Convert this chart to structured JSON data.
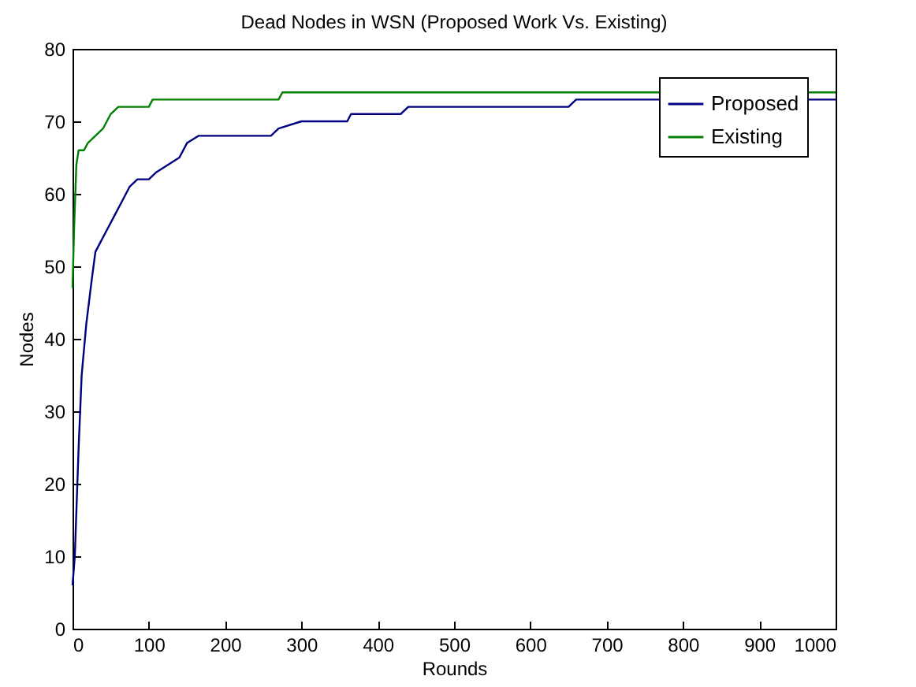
{
  "chart_data": {
    "type": "line",
    "title": "Dead Nodes in  WSN (Proposed Work Vs. Existing)",
    "xlabel": "Rounds",
    "ylabel": "Nodes",
    "xlim": [
      0,
      1000
    ],
    "xticks": [
      0,
      100,
      200,
      300,
      400,
      500,
      600,
      700,
      800,
      900,
      1000
    ],
    "ylim": [
      0,
      80
    ],
    "yticks": [
      0,
      10,
      20,
      30,
      40,
      50,
      60,
      70,
      80
    ],
    "legend": "top right",
    "grid": false,
    "series": [
      {
        "name": "Proposed",
        "color": "#000080",
        "x": [
          0,
          3,
          8,
          12,
          18,
          25,
          30,
          35,
          45,
          55,
          65,
          75,
          85,
          100,
          110,
          125,
          140,
          150,
          165,
          260,
          270,
          300,
          360,
          365,
          430,
          440,
          650,
          660,
          1000
        ],
        "values": [
          6,
          10,
          25,
          35,
          42,
          48,
          52,
          53,
          55,
          57,
          59,
          61,
          62,
          62,
          63,
          64,
          65,
          67,
          68,
          68,
          69,
          70,
          70,
          71,
          71,
          72,
          72,
          73,
          73
        ]
      },
      {
        "name": "Existing",
        "color": "#008000",
        "x": [
          0,
          2,
          5,
          8,
          15,
          20,
          30,
          40,
          50,
          60,
          100,
          105,
          270,
          275,
          1000
        ],
        "values": [
          47,
          55,
          64,
          66,
          66,
          67,
          68,
          69,
          71,
          72,
          72,
          73,
          73,
          74,
          74
        ]
      }
    ]
  }
}
